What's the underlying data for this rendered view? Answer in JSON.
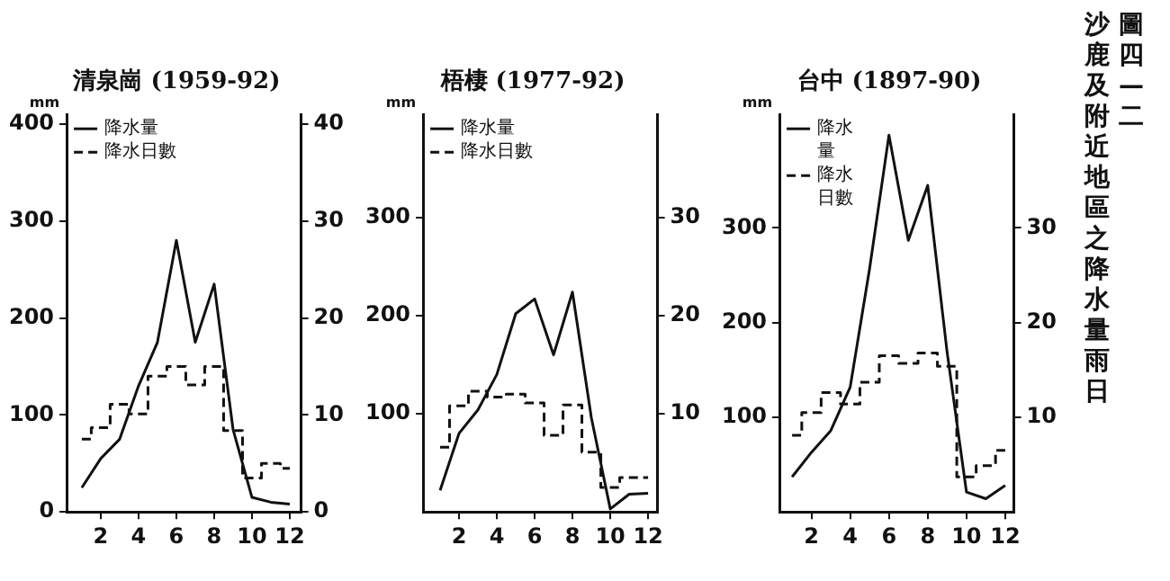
{
  "chart_data": [
    {
      "type": "line",
      "title": "清泉崗 (1959-92)",
      "ylabel": "mm",
      "x": [
        1,
        2,
        3,
        4,
        5,
        6,
        7,
        8,
        9,
        10,
        11,
        12
      ],
      "xlim": [
        0.2,
        12.6
      ],
      "xticks": [
        2,
        4,
        6,
        8,
        10,
        12
      ],
      "ylim": [
        0,
        410
      ],
      "yticks": [
        0,
        100,
        200,
        300,
        400
      ],
      "y2lim": [
        0,
        41
      ],
      "y2ticks": [
        0,
        10,
        20,
        30,
        40
      ],
      "grid": false,
      "legend": "top left",
      "series": [
        {
          "name": "降水量",
          "type": "line",
          "color": "#111111",
          "line_style": "solid",
          "values": [
            25,
            55,
            75,
            130,
            175,
            280,
            175,
            235,
            85,
            15,
            10,
            8
          ]
        },
        {
          "name": "降水日數",
          "type": "step",
          "color": "#111111",
          "line_style": "dashed",
          "axis": "y2",
          "values": [
            7.5,
            8.7,
            11.1,
            10.1,
            14,
            15,
            13.1,
            15,
            8.4,
            3.5,
            5,
            4.5
          ]
        }
      ]
    },
    {
      "type": "line",
      "title": "梧棲 (1977-92)",
      "ylabel": "mm",
      "x": [
        1,
        2,
        3,
        4,
        5,
        6,
        7,
        8,
        9,
        10,
        11,
        12
      ],
      "xlim": [
        0.1,
        12.5
      ],
      "xticks": [
        2,
        4,
        6,
        8,
        10,
        12
      ],
      "ylim": [
        0,
        405
      ],
      "yticks": [
        100,
        200,
        300
      ],
      "y2lim": [
        0,
        40.5
      ],
      "y2ticks": [
        10,
        20,
        30
      ],
      "grid": false,
      "legend": "top left",
      "series": [
        {
          "name": "降水量",
          "type": "line",
          "color": "#111111",
          "line_style": "solid",
          "values": [
            22,
            80,
            104,
            140,
            202,
            217,
            160,
            224,
            96,
            3,
            18,
            19
          ]
        },
        {
          "name": "降水日數",
          "type": "step",
          "color": "#111111",
          "line_style": "dashed",
          "axis": "y2",
          "values": [
            6.6,
            10.8,
            12.3,
            11.7,
            12,
            11.1,
            7.8,
            10.9,
            6.1,
            2.5,
            3.5,
            3.5
          ]
        }
      ]
    },
    {
      "type": "line",
      "title": "台中 (1897-90)",
      "ylabel": "mm",
      "x": [
        1,
        2,
        3,
        4,
        5,
        6,
        7,
        8,
        9,
        10,
        11,
        12
      ],
      "xlim": [
        0.35,
        12.45
      ],
      "xticks": [
        2,
        4,
        6,
        8,
        10,
        12
      ],
      "ylim": [
        0,
        420
      ],
      "yticks": [
        100,
        200,
        300
      ],
      "y2lim": [
        0,
        42
      ],
      "y2ticks": [
        10,
        20,
        30
      ],
      "grid": false,
      "legend": "top left",
      "series": [
        {
          "name": "降水量",
          "type": "line",
          "color": "#111111",
          "line_style": "solid",
          "values": [
            37,
            63,
            86,
            132,
            257,
            398,
            287,
            345,
            169,
            21,
            14,
            28
          ]
        },
        {
          "name": "降水日數",
          "type": "step",
          "color": "#111111",
          "line_style": "dashed",
          "axis": "y2",
          "values": [
            8.1,
            10.5,
            12.6,
            11.4,
            13.7,
            16.5,
            15.7,
            16.8,
            15.4,
            3.7,
            4.9,
            6.5
          ]
        }
      ]
    },
    {
      "type": "other",
      "title": "圖四—二",
      "subtitle": "沙鹿及附近地區之降水量雨日"
    }
  ]
}
